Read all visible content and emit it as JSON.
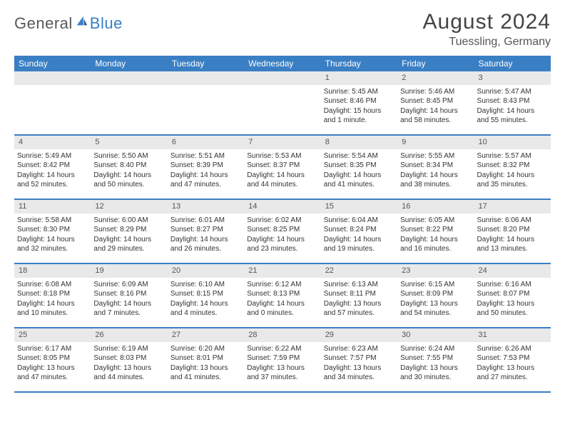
{
  "brand": {
    "part1": "General",
    "part2": "Blue"
  },
  "title": "August 2024",
  "location": "Tuessling, Germany",
  "colors": {
    "header_bg": "#3a7fc4",
    "num_bar_bg": "#e9e9e9",
    "text": "#333333",
    "brand_gray": "#58595b",
    "brand_blue": "#3a7fc4",
    "page_bg": "#ffffff"
  },
  "typography": {
    "title_fontsize": 30,
    "location_fontsize": 16,
    "header_fontsize": 12,
    "body_fontsize": 10
  },
  "weekdays": [
    "Sunday",
    "Monday",
    "Tuesday",
    "Wednesday",
    "Thursday",
    "Friday",
    "Saturday"
  ],
  "weeks": [
    [
      {
        "blank": true
      },
      {
        "blank": true
      },
      {
        "blank": true
      },
      {
        "blank": true
      },
      {
        "num": "1",
        "sunrise": "Sunrise: 5:45 AM",
        "sunset": "Sunset: 8:46 PM",
        "daylight": "Daylight: 15 hours and 1 minute."
      },
      {
        "num": "2",
        "sunrise": "Sunrise: 5:46 AM",
        "sunset": "Sunset: 8:45 PM",
        "daylight": "Daylight: 14 hours and 58 minutes."
      },
      {
        "num": "3",
        "sunrise": "Sunrise: 5:47 AM",
        "sunset": "Sunset: 8:43 PM",
        "daylight": "Daylight: 14 hours and 55 minutes."
      }
    ],
    [
      {
        "num": "4",
        "sunrise": "Sunrise: 5:49 AM",
        "sunset": "Sunset: 8:42 PM",
        "daylight": "Daylight: 14 hours and 52 minutes."
      },
      {
        "num": "5",
        "sunrise": "Sunrise: 5:50 AM",
        "sunset": "Sunset: 8:40 PM",
        "daylight": "Daylight: 14 hours and 50 minutes."
      },
      {
        "num": "6",
        "sunrise": "Sunrise: 5:51 AM",
        "sunset": "Sunset: 8:39 PM",
        "daylight": "Daylight: 14 hours and 47 minutes."
      },
      {
        "num": "7",
        "sunrise": "Sunrise: 5:53 AM",
        "sunset": "Sunset: 8:37 PM",
        "daylight": "Daylight: 14 hours and 44 minutes."
      },
      {
        "num": "8",
        "sunrise": "Sunrise: 5:54 AM",
        "sunset": "Sunset: 8:35 PM",
        "daylight": "Daylight: 14 hours and 41 minutes."
      },
      {
        "num": "9",
        "sunrise": "Sunrise: 5:55 AM",
        "sunset": "Sunset: 8:34 PM",
        "daylight": "Daylight: 14 hours and 38 minutes."
      },
      {
        "num": "10",
        "sunrise": "Sunrise: 5:57 AM",
        "sunset": "Sunset: 8:32 PM",
        "daylight": "Daylight: 14 hours and 35 minutes."
      }
    ],
    [
      {
        "num": "11",
        "sunrise": "Sunrise: 5:58 AM",
        "sunset": "Sunset: 8:30 PM",
        "daylight": "Daylight: 14 hours and 32 minutes."
      },
      {
        "num": "12",
        "sunrise": "Sunrise: 6:00 AM",
        "sunset": "Sunset: 8:29 PM",
        "daylight": "Daylight: 14 hours and 29 minutes."
      },
      {
        "num": "13",
        "sunrise": "Sunrise: 6:01 AM",
        "sunset": "Sunset: 8:27 PM",
        "daylight": "Daylight: 14 hours and 26 minutes."
      },
      {
        "num": "14",
        "sunrise": "Sunrise: 6:02 AM",
        "sunset": "Sunset: 8:25 PM",
        "daylight": "Daylight: 14 hours and 23 minutes."
      },
      {
        "num": "15",
        "sunrise": "Sunrise: 6:04 AM",
        "sunset": "Sunset: 8:24 PM",
        "daylight": "Daylight: 14 hours and 19 minutes."
      },
      {
        "num": "16",
        "sunrise": "Sunrise: 6:05 AM",
        "sunset": "Sunset: 8:22 PM",
        "daylight": "Daylight: 14 hours and 16 minutes."
      },
      {
        "num": "17",
        "sunrise": "Sunrise: 6:06 AM",
        "sunset": "Sunset: 8:20 PM",
        "daylight": "Daylight: 14 hours and 13 minutes."
      }
    ],
    [
      {
        "num": "18",
        "sunrise": "Sunrise: 6:08 AM",
        "sunset": "Sunset: 8:18 PM",
        "daylight": "Daylight: 14 hours and 10 minutes."
      },
      {
        "num": "19",
        "sunrise": "Sunrise: 6:09 AM",
        "sunset": "Sunset: 8:16 PM",
        "daylight": "Daylight: 14 hours and 7 minutes."
      },
      {
        "num": "20",
        "sunrise": "Sunrise: 6:10 AM",
        "sunset": "Sunset: 8:15 PM",
        "daylight": "Daylight: 14 hours and 4 minutes."
      },
      {
        "num": "21",
        "sunrise": "Sunrise: 6:12 AM",
        "sunset": "Sunset: 8:13 PM",
        "daylight": "Daylight: 14 hours and 0 minutes."
      },
      {
        "num": "22",
        "sunrise": "Sunrise: 6:13 AM",
        "sunset": "Sunset: 8:11 PM",
        "daylight": "Daylight: 13 hours and 57 minutes."
      },
      {
        "num": "23",
        "sunrise": "Sunrise: 6:15 AM",
        "sunset": "Sunset: 8:09 PM",
        "daylight": "Daylight: 13 hours and 54 minutes."
      },
      {
        "num": "24",
        "sunrise": "Sunrise: 6:16 AM",
        "sunset": "Sunset: 8:07 PM",
        "daylight": "Daylight: 13 hours and 50 minutes."
      }
    ],
    [
      {
        "num": "25",
        "sunrise": "Sunrise: 6:17 AM",
        "sunset": "Sunset: 8:05 PM",
        "daylight": "Daylight: 13 hours and 47 minutes."
      },
      {
        "num": "26",
        "sunrise": "Sunrise: 6:19 AM",
        "sunset": "Sunset: 8:03 PM",
        "daylight": "Daylight: 13 hours and 44 minutes."
      },
      {
        "num": "27",
        "sunrise": "Sunrise: 6:20 AM",
        "sunset": "Sunset: 8:01 PM",
        "daylight": "Daylight: 13 hours and 41 minutes."
      },
      {
        "num": "28",
        "sunrise": "Sunrise: 6:22 AM",
        "sunset": "Sunset: 7:59 PM",
        "daylight": "Daylight: 13 hours and 37 minutes."
      },
      {
        "num": "29",
        "sunrise": "Sunrise: 6:23 AM",
        "sunset": "Sunset: 7:57 PM",
        "daylight": "Daylight: 13 hours and 34 minutes."
      },
      {
        "num": "30",
        "sunrise": "Sunrise: 6:24 AM",
        "sunset": "Sunset: 7:55 PM",
        "daylight": "Daylight: 13 hours and 30 minutes."
      },
      {
        "num": "31",
        "sunrise": "Sunrise: 6:26 AM",
        "sunset": "Sunset: 7:53 PM",
        "daylight": "Daylight: 13 hours and 27 minutes."
      }
    ]
  ]
}
